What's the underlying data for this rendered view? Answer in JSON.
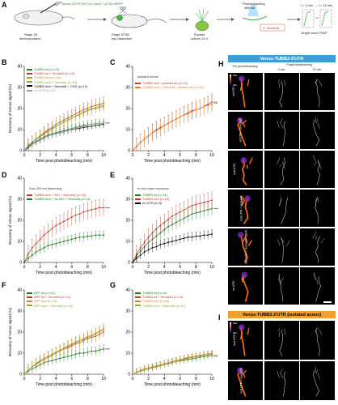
{
  "panel_labels": {
    "A": "A",
    "B": "B",
    "C": "C",
    "D": "D",
    "E": "E",
    "F": "F",
    "G": "G",
    "H": "H",
    "I": "I"
  },
  "schematic": {
    "injection_text": "Venus-3'UTR (WT) or (mut) + pCS2-mRFP",
    "stage1": "Stage 26",
    "stage1_sub": "electroporation",
    "stage2": "Stage 37/38",
    "stage2_sub": "eye dissection",
    "explant": "Explant",
    "explant_sub": "culture 24 h",
    "photobleaching": "Photobleaching",
    "wavelength": "488 nm",
    "sema": "+/- Sema3A",
    "timeline": "t = 0 min → t = 10 min",
    "frap": "Single axon FRAP"
  },
  "shared": {
    "xlabel": "Time post photobleaching (min)",
    "ylabel": "Recovery of Venus signal (%)"
  },
  "chart_data": [
    {
      "id": "B",
      "type": "line",
      "x": [
        0,
        0.5,
        1,
        1.5,
        2,
        2.5,
        3,
        3.5,
        4,
        4.5,
        5,
        5.5,
        6,
        6.5,
        7,
        7.5,
        8,
        8.5,
        9,
        9.5,
        10
      ],
      "xlabel": "Time post photobleaching (min)",
      "ylabel": "Recovery of Venus signal (%)",
      "xlim": [
        0,
        10
      ],
      "ylim": [
        0,
        40
      ],
      "xticks": [
        0,
        2,
        4,
        6,
        8,
        10
      ],
      "yticks": [
        0,
        10,
        20,
        30,
        40
      ],
      "series": [
        {
          "name": "TUBB3 wt (n=13)",
          "color": "#1f7a1f",
          "err": 2,
          "values": [
            0,
            2,
            3.5,
            4.5,
            5.5,
            6.5,
            7.5,
            8,
            8.5,
            9,
            9.5,
            10,
            10.5,
            11,
            11.5,
            12,
            12.2,
            12.5,
            12.8,
            13,
            13
          ]
        },
        {
          "name": "TUBB3 wt + Sema3A (n=13)",
          "color": "#c0392b",
          "err": 3,
          "values": [
            0,
            2.5,
            4,
            5.5,
            7,
            8.5,
            10,
            11,
            12.5,
            13.5,
            14.5,
            15.5,
            16.5,
            17.5,
            18.5,
            19.5,
            20,
            21,
            21.5,
            22,
            22.5
          ]
        },
        {
          "name": "TUBB3 mut (n=14)",
          "color": "#e67e22",
          "err": 2.5,
          "values": [
            0,
            2.5,
            4,
            5.5,
            7,
            8,
            9.5,
            10.5,
            11.5,
            12.5,
            13.5,
            14.5,
            15.5,
            16.5,
            17,
            18,
            19,
            19.5,
            20,
            20.5,
            21
          ]
        },
        {
          "name": "TUBB3 mut + Sema3A (n=14)",
          "color": "#8aa832",
          "err": 2.5,
          "values": [
            0,
            2.5,
            4,
            5.5,
            6.5,
            8,
            9,
            10,
            11.5,
            12.5,
            13.5,
            14.5,
            15.5,
            16.5,
            17.5,
            18.5,
            19,
            20,
            20.5,
            21,
            21.5
          ]
        },
        {
          "name": "TUBB3 mut + Sema3A + CHX (n=12)",
          "color": "#000000",
          "err": 1.5,
          "values": [
            0,
            1.5,
            3,
            4,
            5,
            6,
            7,
            7.5,
            8,
            8.5,
            9,
            9.5,
            10,
            10.3,
            10.6,
            11,
            11.3,
            11.6,
            12,
            12.2,
            12.5
          ]
        },
        {
          "name": "no UTR (n=12)",
          "color": "#999999",
          "err": 1.5,
          "values": [
            0,
            2,
            3,
            4,
            5,
            6,
            7,
            7.5,
            8,
            8.5,
            9,
            9.5,
            10,
            10.5,
            11,
            11.5,
            12,
            12.5,
            12.7,
            13,
            13.2
          ]
        }
      ],
      "significance": "****"
    },
    {
      "id": "C",
      "type": "line",
      "x": [
        0,
        0.5,
        1,
        1.5,
        2,
        2.5,
        3,
        3.5,
        4,
        4.5,
        5,
        5.5,
        6,
        6.5,
        7,
        7.5,
        8,
        8.5,
        9,
        9.5,
        10
      ],
      "xlabel": "Time post photobleaching (min)",
      "ylabel": "",
      "xlim": [
        0,
        10
      ],
      "ylim": [
        0,
        40
      ],
      "xticks": [
        0,
        2,
        4,
        6,
        8,
        10
      ],
      "yticks": [
        0,
        10,
        20,
        30,
        40
      ],
      "inset": "Isolated axons",
      "series": [
        {
          "name": "TUBB3 mut - isolated ax (n=12)",
          "color": "#c0392b",
          "err": 4,
          "values": [
            0,
            2,
            4,
            5.5,
            7,
            8.5,
            10,
            11,
            12,
            13,
            14,
            15,
            16,
            17,
            18,
            19,
            19.5,
            20,
            21,
            22,
            23
          ]
        },
        {
          "name": "TUBB3 mut + Sema3A - isolated ax (n=12)",
          "color": "#e67e22",
          "err": 4,
          "values": [
            0,
            2,
            4,
            5.5,
            7,
            8.5,
            9.5,
            10.5,
            12,
            13,
            14,
            15,
            16,
            17,
            17.5,
            18.5,
            19.5,
            20,
            21,
            21.5,
            22
          ]
        }
      ],
      "significance": "ns"
    },
    {
      "id": "D",
      "type": "line",
      "x": [
        0,
        0.5,
        1,
        1.5,
        2,
        2.5,
        3,
        3.5,
        4,
        4.5,
        5,
        5.5,
        6,
        6.5,
        7,
        7.5,
        8,
        8.5,
        9,
        9.5,
        10
      ],
      "xlabel": "Time post photobleaching (min)",
      "ylabel": "Recovery of Venus signal (%)",
      "xlim": [
        0,
        10
      ],
      "ylim": [
        0,
        40
      ],
      "xticks": [
        0,
        2,
        4,
        6,
        8,
        10
      ],
      "yticks": [
        0,
        10,
        20,
        30,
        40
      ],
      "inset": "Sub-200 nm bleaching",
      "series": [
        {
          "name": "TUBB3 mut + MO + Sema3A (n=15)",
          "color": "#c0392b",
          "err": 4,
          "values": [
            0,
            4,
            7,
            9,
            11,
            13,
            14.5,
            16,
            17.5,
            18.5,
            19.5,
            20.5,
            21.5,
            22.5,
            23,
            24,
            24.5,
            25,
            25.5,
            26,
            26
          ]
        },
        {
          "name": "TUBB3 mut + ctr-MO + Sema3A (n=14)",
          "color": "#1f7a1f",
          "err": 2,
          "values": [
            0,
            2,
            3.5,
            5,
            6,
            7,
            8,
            8.5,
            9,
            9.5,
            10,
            10.5,
            11,
            11.5,
            12,
            12,
            12.5,
            12.5,
            13,
            13,
            13
          ]
        }
      ],
      "significance": "****"
    },
    {
      "id": "E",
      "type": "line",
      "x": [
        0,
        0.5,
        1,
        1.5,
        2,
        2.5,
        3,
        3.5,
        4,
        4.5,
        5,
        5.5,
        6,
        6.5,
        7,
        7.5,
        8,
        8.5,
        9,
        9.5,
        10
      ],
      "xlabel": "Time post photobleaching (min)",
      "ylabel": "",
      "xlim": [
        0,
        10
      ],
      "ylim": [
        0,
        40
      ],
      "xticks": [
        0,
        2,
        4,
        6,
        8,
        10
      ],
      "yticks": [
        0,
        10,
        20,
        30,
        40
      ],
      "inset": "in vivo brain exposure",
      "series": [
        {
          "name": "TUBB3 wt (n=14)",
          "color": "#1f7a1f",
          "err": 3,
          "values": [
            0,
            3,
            5.5,
            7.5,
            9.5,
            11,
            12.5,
            14,
            15.5,
            17,
            18,
            19,
            20,
            21,
            22,
            23,
            23.5,
            24,
            24.5,
            25,
            25.5
          ]
        },
        {
          "name": "TUBB3 mut (n=16)",
          "color": "#c0392b",
          "err": 4,
          "values": [
            0,
            4,
            7,
            9.5,
            12,
            14,
            16,
            17.5,
            19,
            20.5,
            22,
            23,
            24,
            25,
            26,
            27,
            27.5,
            28,
            28.5,
            29,
            29.5
          ]
        },
        {
          "name": "no UTR (n=9)",
          "color": "#000000",
          "err": 2,
          "values": [
            0,
            2,
            3.5,
            5,
            6,
            7,
            7.5,
            8.5,
            9,
            9.5,
            10,
            10.5,
            11,
            11.5,
            12,
            12,
            12.5,
            12.5,
            13,
            13,
            13.5
          ]
        }
      ],
      "significance": "****"
    },
    {
      "id": "F",
      "type": "line",
      "x": [
        0,
        0.5,
        1,
        1.5,
        2,
        2.5,
        3,
        3.5,
        4,
        4.5,
        5,
        5.5,
        6,
        6.5,
        7,
        7.5,
        8,
        8.5,
        9,
        9.5,
        10
      ],
      "xlabel": "Time post photobleaching (min)",
      "ylabel": "Recovery of Venus signal (%)",
      "xlim": [
        0,
        10
      ],
      "ylim": [
        0,
        40
      ],
      "xticks": [
        0,
        2,
        4,
        6,
        8,
        10
      ],
      "yticks": [
        0,
        10,
        20,
        30,
        40
      ],
      "series": [
        {
          "name": "APP wt (n=12)",
          "color": "#1f7a1f",
          "err": 2,
          "values": [
            0,
            1.5,
            2.5,
            3.5,
            4.5,
            5.5,
            6,
            6.5,
            7,
            7.5,
            8,
            8.5,
            9,
            9.5,
            10,
            10,
            10.5,
            11,
            11,
            11.5,
            12
          ]
        },
        {
          "name": "APP wt + Sema3A (n=12)",
          "color": "#c0392b",
          "err": 2.5,
          "values": [
            0,
            2,
            3.5,
            5,
            6,
            7,
            8,
            9,
            10,
            11,
            12,
            12.5,
            13.5,
            14.5,
            15,
            16,
            17,
            17.5,
            18,
            19,
            20
          ]
        },
        {
          "name": "APP mut (n=14)",
          "color": "#e67e22",
          "err": 2.5,
          "values": [
            0,
            2,
            3.5,
            5,
            6.5,
            7.5,
            8.5,
            9.5,
            10.5,
            11.5,
            12.5,
            13.5,
            14.5,
            15.5,
            16,
            17,
            18,
            18.5,
            19.5,
            20.5,
            21.5
          ]
        },
        {
          "name": "APP mut + Sema3A (n=13)",
          "color": "#8aa832",
          "err": 2.5,
          "values": [
            0,
            2,
            3.5,
            4.5,
            6,
            7,
            8,
            9,
            10,
            11,
            12,
            13,
            14,
            15,
            16,
            16.5,
            17.5,
            18,
            19,
            20,
            21
          ]
        }
      ],
      "significance": "****"
    },
    {
      "id": "G",
      "type": "line",
      "x": [
        0,
        0.5,
        1,
        1.5,
        2,
        2.5,
        3,
        3.5,
        4,
        4.5,
        5,
        5.5,
        6,
        6.5,
        7,
        7.5,
        8,
        8.5,
        9,
        9.5,
        10
      ],
      "xlabel": "Time post photobleaching (min)",
      "ylabel": "",
      "xlim": [
        0,
        10
      ],
      "ylim": [
        0,
        40
      ],
      "xticks": [
        0,
        2,
        4,
        6,
        8,
        10
      ],
      "yticks": [
        0,
        10,
        20,
        30,
        40
      ],
      "series": [
        {
          "name": "TUBB3 wt (n=11)",
          "color": "#1f7a1f",
          "err": 1.5,
          "values": [
            0,
            1,
            1.5,
            2,
            2.5,
            3,
            3.5,
            4,
            4.5,
            5,
            5.5,
            6,
            6.3,
            6.6,
            7,
            7.3,
            7.6,
            8,
            8.3,
            8.6,
            9
          ]
        },
        {
          "name": "TUBB3 wt + Sema3A (n=14)",
          "color": "#c0392b",
          "err": 1.5,
          "values": [
            0,
            1,
            1.5,
            2.5,
            3,
            3.5,
            4,
            4.5,
            5,
            5.5,
            6,
            6.5,
            7,
            7.3,
            7.7,
            8,
            8.3,
            8.6,
            9,
            9.3,
            9.6
          ]
        },
        {
          "name": "TUBB3 mut (n=14)",
          "color": "#e67e22",
          "err": 1.5,
          "values": [
            0,
            1,
            1.8,
            2.5,
            3,
            3.5,
            4,
            4.5,
            5,
            5.5,
            6,
            6.5,
            7,
            7.5,
            8,
            8.3,
            8.6,
            9,
            9.3,
            9.6,
            10
          ]
        },
        {
          "name": "TUBB3 mut + Sema3A (n=11)",
          "color": "#8aa832",
          "err": 1.5,
          "values": [
            0,
            1,
            1.5,
            2,
            2.5,
            3,
            3.5,
            4,
            4.5,
            5,
            5.5,
            6,
            6.5,
            7,
            7.5,
            8,
            8.3,
            8.6,
            9,
            9.3,
            9.6
          ]
        }
      ],
      "significance": "ns"
    }
  ],
  "panel_H": {
    "title": "Venus-TUBB3-3'UTR",
    "col_pre": "Pre photobleaching",
    "col_post": "Postphotobleaching",
    "col_0": "0 min",
    "col_10": "10 min",
    "rows": [
      "wt UTR",
      "wt UTR + Sema3A",
      "mut UTR",
      "mut UTR + Sema3A",
      "mut UTR + Sema3A + CHX",
      "no UTR"
    ],
    "scale_max": "Max",
    "scale_min": "Min"
  },
  "panel_I": {
    "title": "Venus-TUBB3-3'UTR (isolated axons)",
    "rows": [
      "mut UTR",
      "mut UTR + Sema3A"
    ],
    "scale_max": "Max",
    "scale_min": "Min"
  },
  "colors": {
    "panel_H_header": "#3aa0d8",
    "panel_I_header": "#f0a030"
  }
}
